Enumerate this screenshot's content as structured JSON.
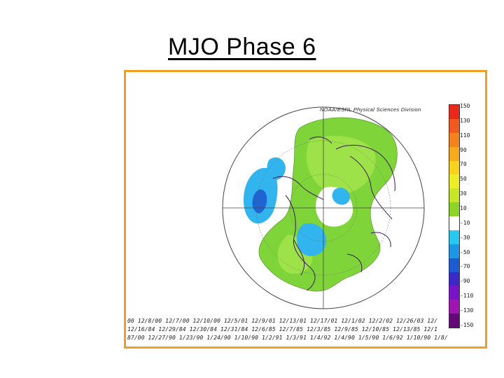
{
  "slide": {
    "title": "MJO Phase 6"
  },
  "map": {
    "credit": "NOAA/ESRL Physical Sciences Division",
    "colorbar": {
      "labels": [
        "150",
        "130",
        "110",
        "90",
        "70",
        "50",
        "30",
        "10",
        "-10",
        "-30",
        "-50",
        "-70",
        "-90",
        "-110",
        "-130",
        "-150"
      ],
      "colors": [
        "#e8281a",
        "#f05a1e",
        "#f4821e",
        "#f8aa1e",
        "#f8d21e",
        "#eeee28",
        "#c8e628",
        "#8cd428",
        "#ffffff",
        "#28c8f0",
        "#1e96e6",
        "#1e5ad2",
        "#3c28c8",
        "#7814c8",
        "#a014b4",
        "#640a78"
      ]
    },
    "dates": [
      "00 12/8/00 12/7/00 12/10/00 12/5/01 12/9/01 12/13/01 12/17/01 12/1/02 12/2/02 12/26/03 12/",
      "12/16/84 12/29/84 12/30/84 12/31/84 12/6/85 12/7/85 12/3/85 12/9/85 12/10/85 12/13/85 12/1",
      "87/00 12/27/90 1/23/90 1/24/90 1/10/90 1/2/91 1/3/91 1/4/92 1/4/90 1/5/90 1/6/92 1/10/90 1/8/"
    ]
  }
}
